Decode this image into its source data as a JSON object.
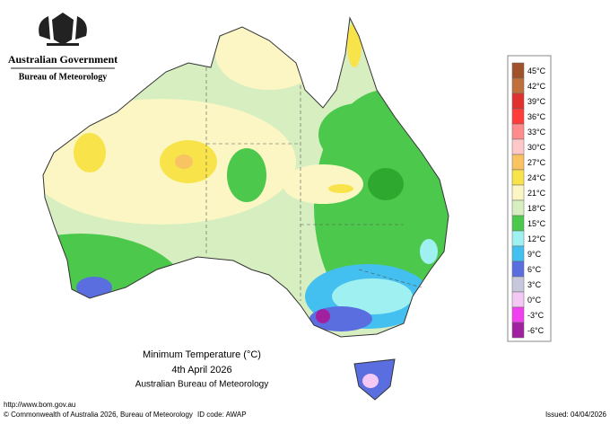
{
  "header": {
    "government": "Australian Government",
    "bureau": "Bureau of Meteorology"
  },
  "legend": {
    "items": [
      {
        "label": "45°C",
        "color": "#a0522d"
      },
      {
        "label": "42°C",
        "color": "#c0703c"
      },
      {
        "label": "39°C",
        "color": "#e03030"
      },
      {
        "label": "36°C",
        "color": "#ff3b3b"
      },
      {
        "label": "33°C",
        "color": "#ff8c8c"
      },
      {
        "label": "30°C",
        "color": "#ffc8c8"
      },
      {
        "label": "27°C",
        "color": "#f9c262"
      },
      {
        "label": "24°C",
        "color": "#f8e44a"
      },
      {
        "label": "21°C",
        "color": "#fbf6c4"
      },
      {
        "label": "18°C",
        "color": "#d6eec0"
      },
      {
        "label": "15°C",
        "color": "#4cc84c"
      },
      {
        "label": "12°C",
        "color": "#9ff0f0"
      },
      {
        "label": "9°C",
        "color": "#44c0f0"
      },
      {
        "label": "6°C",
        "color": "#5a6ee0"
      },
      {
        "label": "3°C",
        "color": "#c8c8dc"
      },
      {
        "label": "0°C",
        "color": "#f4c8f4"
      },
      {
        "label": "-3°C",
        "color": "#f040f0"
      },
      {
        "label": "-6°C",
        "color": "#a020a0"
      }
    ]
  },
  "caption": {
    "title": "Minimum Temperature (°C)",
    "date": "4th April 2026",
    "source": "Australian Bureau of Meteorology"
  },
  "footer": {
    "url": "http://www.bom.gov.au",
    "copyright": "© Commonwealth of Australia 2026, Bureau of Meteorology",
    "id_code": "ID code: AWAP",
    "issued": "Issued: 04/04/2026"
  }
}
